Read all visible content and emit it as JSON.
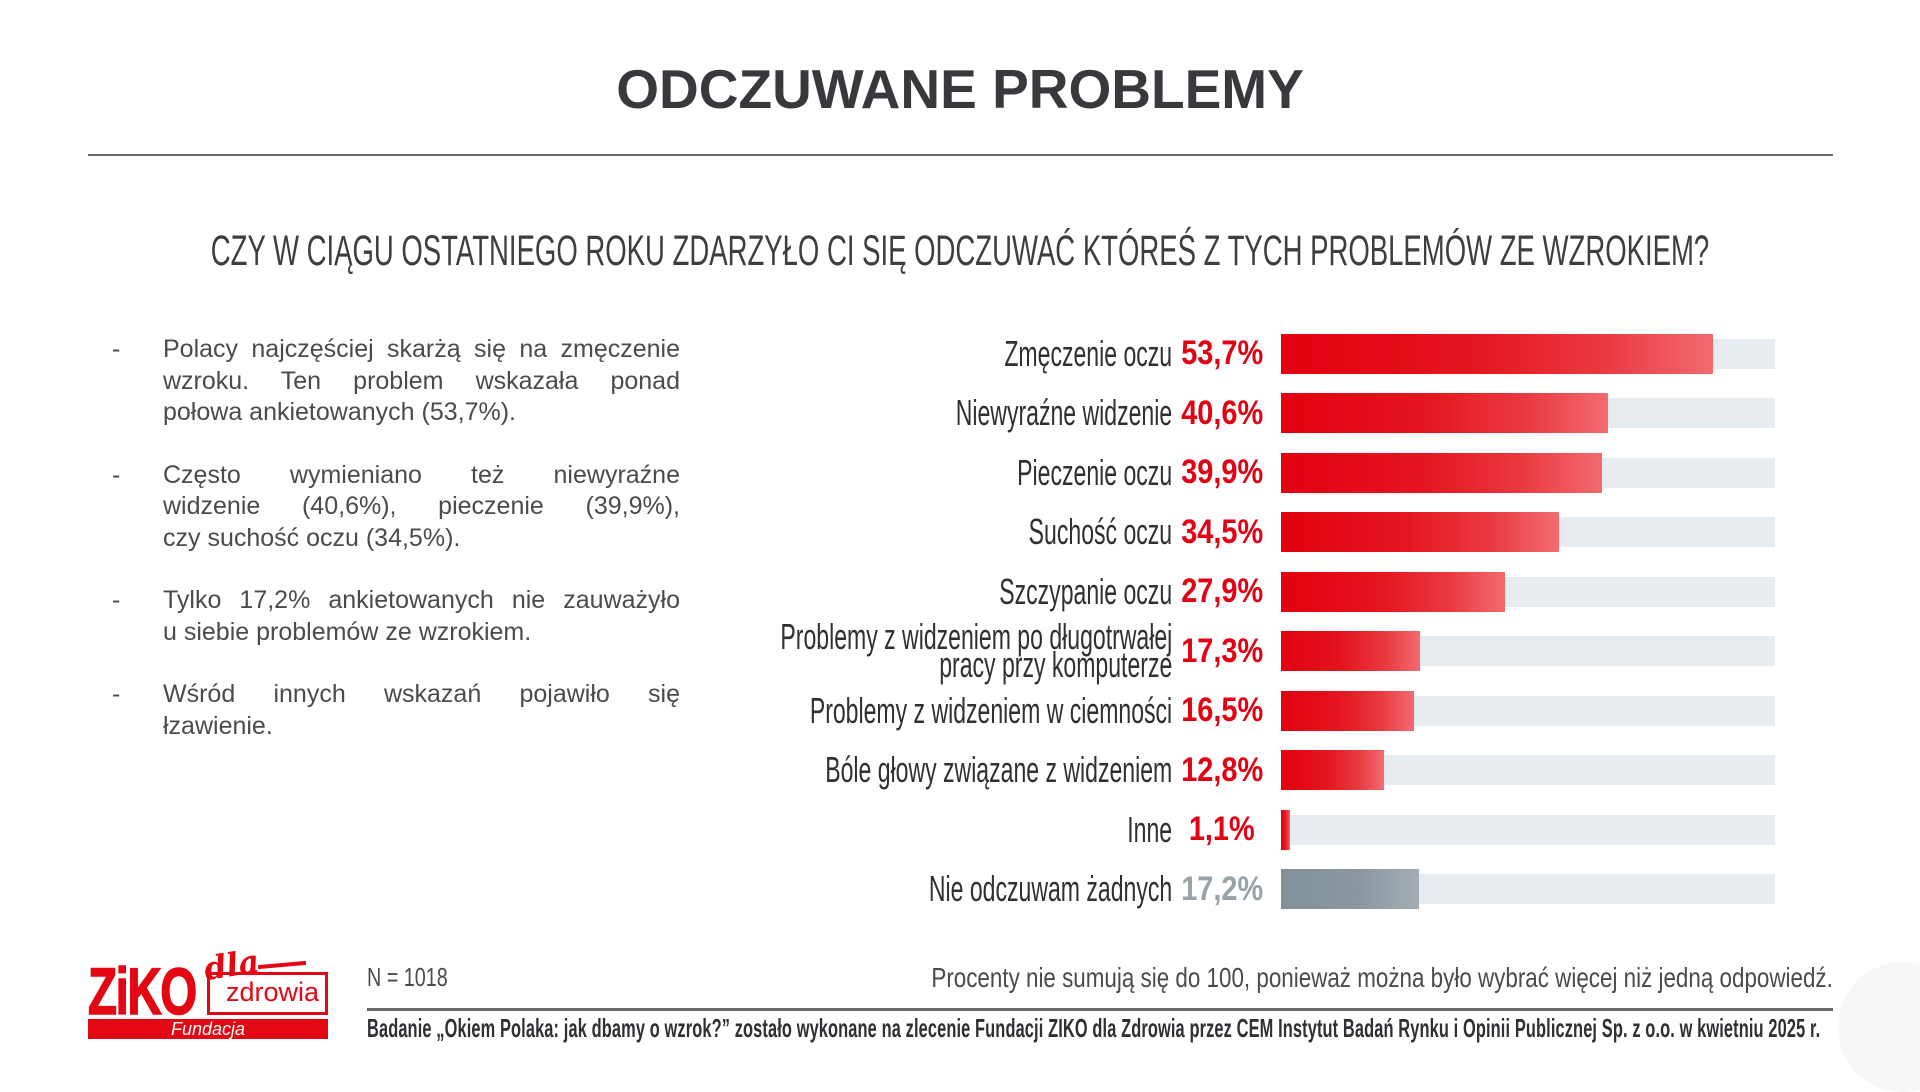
{
  "title": "ODCZUWANE PROBLEMY",
  "question": "CZY W CIĄGU OSTATNIEGO ROKU ZDARZYŁO CI SIĘ ODCZUWAĆ KTÓREŚ Z TYCH PROBLEMÓW ZE WZROKIEM?",
  "bullets": [
    [
      "Polacy najczęściej skarżą się na zmęczenie",
      "wzroku. Ten problem wskazała ponad",
      "połowa ankietowanych (53,7%)."
    ],
    [
      "Często wymieniano też niewyraźne",
      "widzenie (40,6%), pieczenie (39,9%),",
      "czy suchość oczu (34,5%)."
    ],
    [
      "Tylko 17,2% ankietowanych nie zauważyło",
      "u siebie problemów ze wzrokiem."
    ],
    [
      "Wśród innych wskazań pojawiło się",
      "łzawienie."
    ]
  ],
  "chart_data": {
    "type": "bar",
    "orientation": "horizontal",
    "title": "",
    "xlabel": "",
    "ylabel": "",
    "unit": "%",
    "xlim": [
      0,
      61.4
    ],
    "grid": false,
    "legend": false,
    "categories": [
      "Zmęczenie oczu",
      "Niewyraźne widzenie",
      "Pieczenie oczu",
      "Suchość oczu",
      "Szczypanie oczu",
      "Problemy z widzeniem po długotrwałej\npracy przy komputerze",
      "Problemy z widzeniem w ciemności",
      "Bóle głowy związane z widzeniem",
      "Inne",
      "Nie odczuwam żadnych"
    ],
    "values": [
      53.7,
      40.6,
      39.9,
      34.5,
      27.9,
      17.3,
      16.5,
      12.8,
      1.1,
      17.2
    ],
    "value_labels": [
      "53,7%",
      "40,6%",
      "39,9%",
      "34,5%",
      "27,9%",
      "17,3%",
      "16,5%",
      "12,8%",
      "1,1%",
      "17,2%"
    ],
    "muted_index": 9,
    "bar_color_start": "#e2000f",
    "bar_color_end": "#f26b70",
    "muted_color_start": "#81909a",
    "muted_color_end": "#a3adb3",
    "track_color": "#e6ecef"
  },
  "footer": {
    "sample_size": "N = 1018",
    "note": "Procenty nie sumują się do 100, ponieważ można było wybrać więcej niż jedną odpowiedź.",
    "source": "Badanie „Okiem Polaka: jak dbamy o wzrok?” zostało wykonane na zlecenie Fundacji ZIKO dla Zdrowia przez CEM Instytut Badań Rynku i Opinii Publicznej Sp. z o.o. w kwietniu 2025 r."
  },
  "logo": {
    "brand": "ZiKO",
    "script": "dla",
    "boxed": "zdrowia",
    "banner": "Fundacja",
    "color": "#e30613"
  }
}
